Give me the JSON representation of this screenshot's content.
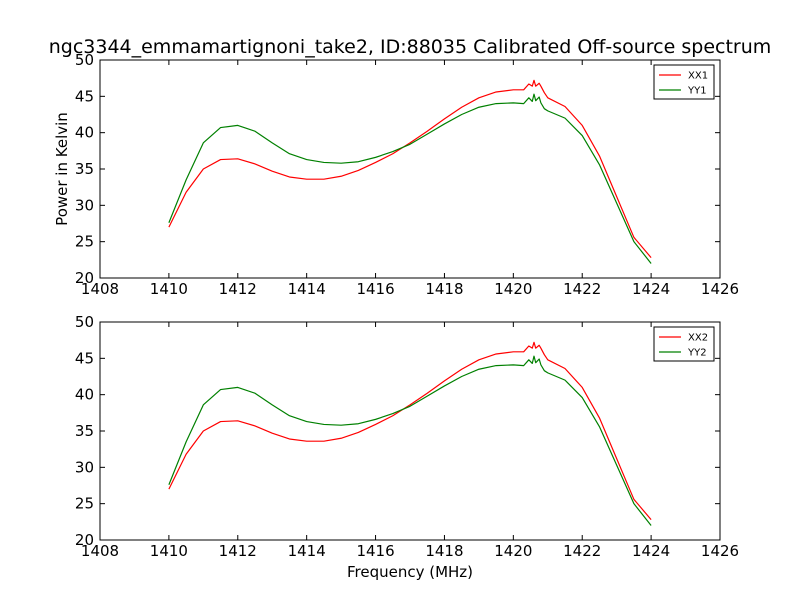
{
  "figure": {
    "title": "ngc3344_emmamartignoni_take2, ID:88035 Calibrated Off-source spectrum"
  },
  "colors": {
    "xx": "#ff0000",
    "yy": "#008000"
  },
  "chart_data": [
    {
      "type": "line",
      "title": "ngc3344_emmamartignoni_take2, ID:88035 Calibrated Off-source spectrum",
      "xlabel": "",
      "ylabel": "Power in Kelvin",
      "xlim": [
        1408,
        1426
      ],
      "ylim": [
        20,
        50
      ],
      "xticks": [
        1408,
        1410,
        1412,
        1414,
        1416,
        1418,
        1420,
        1422,
        1424,
        1426
      ],
      "yticks": [
        20,
        25,
        30,
        35,
        40,
        45,
        50
      ],
      "legend": "top-right",
      "grid": false,
      "series": [
        {
          "name": "XX1",
          "color": "#ff0000",
          "x": [
            1410,
            1410.5,
            1411,
            1411.5,
            1412,
            1412.5,
            1413,
            1413.5,
            1414,
            1414.5,
            1415,
            1415.5,
            1416,
            1416.5,
            1417,
            1417.5,
            1418,
            1418.5,
            1419,
            1419.5,
            1420,
            1420.3,
            1420.45,
            1420.55,
            1420.6,
            1420.65,
            1420.75,
            1420.8,
            1420.9,
            1421,
            1421.5,
            1422,
            1422.5,
            1423,
            1423.5,
            1424
          ],
          "values": [
            27.0,
            31.8,
            35.0,
            36.3,
            36.4,
            35.7,
            34.7,
            33.9,
            33.6,
            33.6,
            34.0,
            34.8,
            35.9,
            37.1,
            38.6,
            40.2,
            41.9,
            43.5,
            44.8,
            45.6,
            45.9,
            45.9,
            46.7,
            46.4,
            47.2,
            46.4,
            46.8,
            46.4,
            45.5,
            44.8,
            43.6,
            41.0,
            36.8,
            31.2,
            25.6,
            22.8
          ]
        },
        {
          "name": "YY1",
          "color": "#008000",
          "x": [
            1410,
            1410.5,
            1411,
            1411.5,
            1412,
            1412.5,
            1413,
            1413.5,
            1414,
            1414.5,
            1415,
            1415.5,
            1416,
            1416.5,
            1417,
            1417.5,
            1418,
            1418.5,
            1419,
            1419.5,
            1420,
            1420.3,
            1420.45,
            1420.55,
            1420.6,
            1420.65,
            1420.75,
            1420.8,
            1420.9,
            1421,
            1421.5,
            1422,
            1422.5,
            1423,
            1423.5,
            1424
          ],
          "values": [
            27.6,
            33.5,
            38.6,
            40.7,
            41.0,
            40.2,
            38.6,
            37.1,
            36.3,
            35.9,
            35.8,
            36.0,
            36.6,
            37.4,
            38.4,
            39.8,
            41.2,
            42.5,
            43.5,
            44.0,
            44.1,
            44.0,
            44.8,
            44.3,
            45.3,
            44.4,
            44.9,
            44.1,
            43.3,
            43.0,
            42.0,
            39.6,
            35.6,
            30.3,
            25.0,
            22.0
          ]
        }
      ]
    },
    {
      "type": "line",
      "title": "",
      "xlabel": "Frequency (MHz)",
      "ylabel": "",
      "xlim": [
        1408,
        1426
      ],
      "ylim": [
        20,
        50
      ],
      "xticks": [
        1408,
        1410,
        1412,
        1414,
        1416,
        1418,
        1420,
        1422,
        1424,
        1426
      ],
      "yticks": [
        20,
        25,
        30,
        35,
        40,
        45,
        50
      ],
      "legend": "top-right",
      "grid": false,
      "series": [
        {
          "name": "XX2",
          "color": "#ff0000",
          "x": [
            1410,
            1410.5,
            1411,
            1411.5,
            1412,
            1412.5,
            1413,
            1413.5,
            1414,
            1414.5,
            1415,
            1415.5,
            1416,
            1416.5,
            1417,
            1417.5,
            1418,
            1418.5,
            1419,
            1419.5,
            1420,
            1420.3,
            1420.45,
            1420.55,
            1420.6,
            1420.65,
            1420.75,
            1420.8,
            1420.9,
            1421,
            1421.5,
            1422,
            1422.5,
            1423,
            1423.5,
            1424
          ],
          "values": [
            27.0,
            31.8,
            35.0,
            36.3,
            36.4,
            35.7,
            34.7,
            33.9,
            33.6,
            33.6,
            34.0,
            34.8,
            35.9,
            37.1,
            38.6,
            40.2,
            41.9,
            43.5,
            44.8,
            45.6,
            45.9,
            45.9,
            46.7,
            46.4,
            47.2,
            46.4,
            46.8,
            46.4,
            45.5,
            44.8,
            43.6,
            41.0,
            36.8,
            31.2,
            25.6,
            22.8
          ]
        },
        {
          "name": "YY2",
          "color": "#008000",
          "x": [
            1410,
            1410.5,
            1411,
            1411.5,
            1412,
            1412.5,
            1413,
            1413.5,
            1414,
            1414.5,
            1415,
            1415.5,
            1416,
            1416.5,
            1417,
            1417.5,
            1418,
            1418.5,
            1419,
            1419.5,
            1420,
            1420.3,
            1420.45,
            1420.55,
            1420.6,
            1420.65,
            1420.75,
            1420.8,
            1420.9,
            1421,
            1421.5,
            1422,
            1422.5,
            1423,
            1423.5,
            1424
          ],
          "values": [
            27.6,
            33.5,
            38.6,
            40.7,
            41.0,
            40.2,
            38.6,
            37.1,
            36.3,
            35.9,
            35.8,
            36.0,
            36.6,
            37.4,
            38.4,
            39.8,
            41.2,
            42.5,
            43.5,
            44.0,
            44.1,
            44.0,
            44.8,
            44.3,
            45.3,
            44.4,
            44.9,
            44.1,
            43.3,
            43.0,
            42.0,
            39.6,
            35.6,
            30.3,
            25.0,
            22.0
          ]
        }
      ]
    }
  ]
}
